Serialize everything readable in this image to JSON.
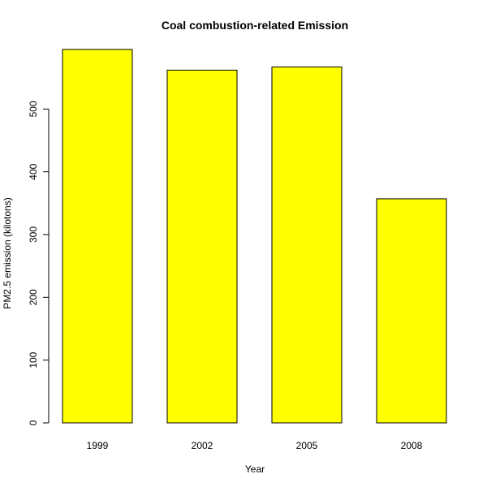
{
  "chart_data": {
    "type": "bar",
    "title": "Coal combustion-related Emission",
    "xlabel": "Year",
    "ylabel": "PM2.5 emission (kilotons)",
    "categories": [
      "1999",
      "2002",
      "2005",
      "2008"
    ],
    "values": [
      595,
      562,
      567,
      357
    ],
    "ylim": [
      0,
      600
    ],
    "yticks": [
      0,
      100,
      200,
      300,
      400,
      500
    ],
    "ytick_labels": [
      "0",
      "100",
      "200",
      "300",
      "400",
      "500"
    ],
    "grid": false,
    "bar_color": "#FFFF00",
    "bar_border_color": "#000000"
  }
}
